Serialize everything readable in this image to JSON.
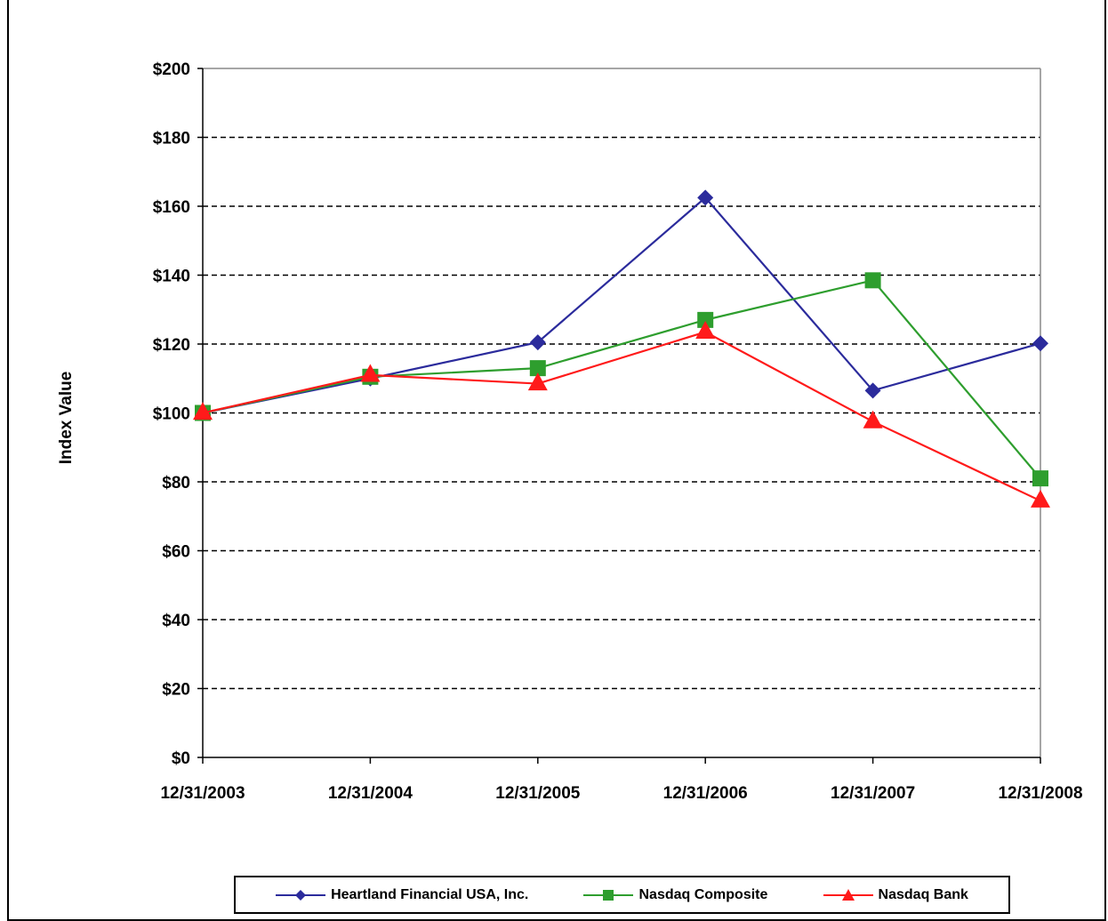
{
  "chart_data": {
    "type": "line",
    "title": "",
    "xlabel": "",
    "ylabel": "Index Value",
    "categories": [
      "12/31/2003",
      "12/31/2004",
      "12/31/2005",
      "12/31/2006",
      "12/31/2007",
      "12/31/2008"
    ],
    "ylim": [
      0,
      200
    ],
    "ytick_step": 20,
    "ytick_labels": [
      "$0",
      "$20",
      "$40",
      "$60",
      "$80",
      "$100",
      "$120",
      "$140",
      "$160",
      "$180",
      "$200"
    ],
    "grid": "horizontal-dashed",
    "legend_position": "bottom",
    "series": [
      {
        "name": "Heartland Financial USA, Inc.",
        "color": "#2b2b9c",
        "marker": "diamond",
        "values": [
          100,
          110,
          120.5,
          162.5,
          106.5,
          120.2
        ]
      },
      {
        "name": "Nasdaq Composite",
        "color": "#2e9e2e",
        "marker": "square",
        "values": [
          100,
          110.5,
          113,
          127,
          138.5,
          81
        ]
      },
      {
        "name": "Nasdaq Bank",
        "color": "#ff1a1a",
        "marker": "triangle",
        "values": [
          100,
          111,
          108.5,
          123.5,
          97.5,
          74.5
        ]
      }
    ]
  }
}
